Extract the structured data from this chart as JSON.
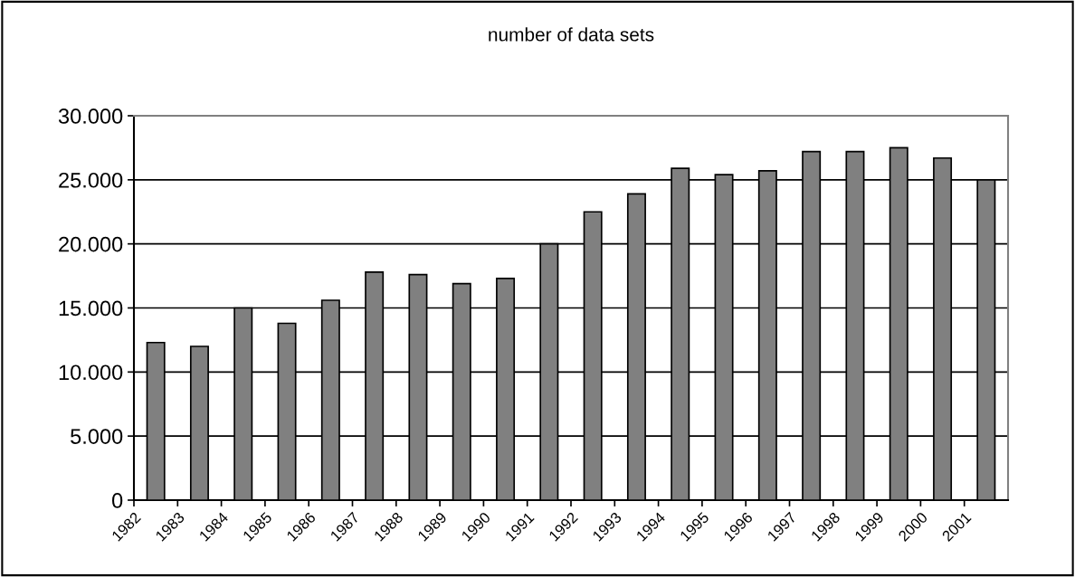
{
  "chart_data": {
    "type": "bar",
    "title": "number of data sets",
    "categories": [
      "1982",
      "1983",
      "1984",
      "1985",
      "1986",
      "1987",
      "1988",
      "1989",
      "1990",
      "1991",
      "1992",
      "1993",
      "1994",
      "1995",
      "1996",
      "1997",
      "1998",
      "1999",
      "2000",
      "2001"
    ],
    "values": [
      12300,
      12000,
      15000,
      13800,
      15600,
      17800,
      17600,
      16900,
      17300,
      20000,
      22500,
      23900,
      25900,
      25400,
      25700,
      27200,
      27200,
      27500,
      26700,
      25000
    ],
    "color": "#808080",
    "ylim": [
      0,
      30000
    ],
    "yticks": [
      {
        "value": 0,
        "label": "0"
      },
      {
        "value": 5000,
        "label": "5.000"
      },
      {
        "value": 10000,
        "label": "10.000"
      },
      {
        "value": 15000,
        "label": "15.000"
      },
      {
        "value": 20000,
        "label": "20.000"
      },
      {
        "value": 25000,
        "label": "25.000"
      },
      {
        "value": 30000,
        "label": "30.000"
      }
    ],
    "grid": "y",
    "legend": false
  }
}
